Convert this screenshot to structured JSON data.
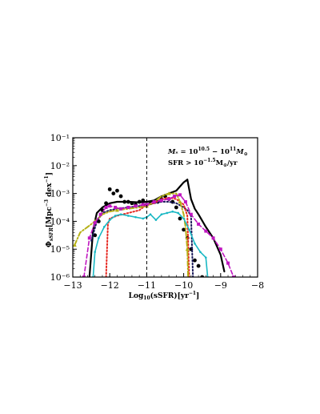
{
  "chart_data": {
    "type": "line",
    "xlabel": "Log₁₀(sSFR)[yr⁻¹]",
    "ylabel": "Φ_sSFR[Mpc⁻³ dex⁻¹]",
    "annotation_lines": [
      "M* = 10^10.5 − 10^11 M⊙",
      "SFR > 10^−1.5 M⊙/yr"
    ],
    "xlim": [
      -13,
      -8
    ],
    "ylim_log10": [
      -6,
      -1
    ],
    "x_ticks": [
      -13,
      -12,
      -11,
      -10,
      -9,
      -8
    ],
    "x_tick_labels": [
      "−13",
      "−12",
      "−11",
      "−10",
      "−9",
      "−8"
    ],
    "y_ticks_log10": [
      -6,
      -5,
      -4,
      -3,
      -2,
      -1
    ],
    "y_tick_labels": [
      "10⁻⁶",
      "10⁻⁵",
      "10⁻⁴",
      "10⁻³",
      "10⁻²",
      "10⁻¹"
    ],
    "vline_x": -11,
    "grid": false,
    "series": [
      {
        "color": "#000000",
        "style": "solid",
        "width": 2.2,
        "x": [
          -12.55,
          -12.45,
          -12.35,
          -12.2,
          -12.0,
          -11.8,
          -11.5,
          -11.2,
          -11.0,
          -10.8,
          -10.6,
          -10.4,
          -10.2,
          -10.1,
          -10.0,
          -9.9,
          -9.8,
          -9.7,
          -9.6,
          -9.4,
          -9.2,
          -9.0,
          -8.9
        ],
        "y_log10": [
          -6.0,
          -4.3,
          -3.7,
          -3.5,
          -3.35,
          -3.3,
          -3.3,
          -3.32,
          -3.3,
          -3.25,
          -3.1,
          -3.0,
          -2.9,
          -2.75,
          -2.6,
          -2.5,
          -3.2,
          -3.55,
          -3.75,
          -4.2,
          -4.6,
          -5.2,
          -5.8
        ]
      },
      {
        "color": "#000000",
        "style": "dots",
        "width": 0,
        "x": [
          -12.4,
          -12.3,
          -12.2,
          -12.1,
          -12.0,
          -11.9,
          -11.8,
          -11.7,
          -11.6,
          -11.5,
          -11.4,
          -11.3,
          -11.2,
          -11.1,
          -11.0,
          -10.9,
          -10.8,
          -10.7,
          -10.6,
          -10.5,
          -10.4,
          -10.3,
          -10.2,
          -10.1,
          -10.0,
          -9.9,
          -9.8,
          -9.7,
          -9.6,
          -9.5
        ],
        "y_log10": [
          -4.5,
          -4.0,
          -3.6,
          -3.35,
          -2.85,
          -3.0,
          -2.9,
          -3.1,
          -3.3,
          -3.3,
          -3.35,
          -3.4,
          -3.3,
          -3.25,
          -3.4,
          -3.35,
          -3.3,
          -3.3,
          -3.2,
          -3.1,
          -3.2,
          -3.3,
          -3.5,
          -3.9,
          -4.3,
          -4.6,
          -5.0,
          -5.4,
          -5.6,
          -6.0
        ]
      },
      {
        "color": "#1a1a5a",
        "style": "dotted",
        "width": 2,
        "x": [
          -12.5,
          -12.35,
          -12.2,
          -12.0,
          -11.8,
          -11.5,
          -11.2,
          -11.0,
          -10.8,
          -10.6,
          -10.4,
          -10.2,
          -10.0,
          -9.9,
          -9.8,
          -9.75
        ],
        "y_log10": [
          -4.7,
          -4.0,
          -3.7,
          -3.6,
          -3.55,
          -3.5,
          -3.45,
          -3.4,
          -3.35,
          -3.3,
          -3.3,
          -3.35,
          -3.5,
          -3.6,
          -3.8,
          -6.0
        ]
      },
      {
        "color": "#e6261f",
        "style": "dotted",
        "width": 2,
        "x": [
          -12.1,
          -12.05,
          -12.0,
          -11.8,
          -11.5,
          -11.2,
          -11.0,
          -10.8,
          -10.6,
          -10.4,
          -10.2,
          -10.0,
          -9.9,
          -9.85
        ],
        "y_log10": [
          -6.0,
          -4.1,
          -3.9,
          -3.8,
          -3.7,
          -3.6,
          -3.4,
          -3.35,
          -3.2,
          -3.15,
          -3.2,
          -3.4,
          -3.8,
          -6.0
        ]
      },
      {
        "color": "#b5b015",
        "style": "dashdot",
        "width": 2,
        "x": [
          -12.95,
          -12.8,
          -12.6,
          -12.4,
          -12.2,
          -12.0,
          -11.8,
          -11.5,
          -11.2,
          -11.0,
          -10.8,
          -10.6,
          -10.4,
          -10.3,
          -10.2,
          -10.1,
          -10.0,
          -9.95,
          -9.9,
          -9.88
        ],
        "y_log10": [
          -4.85,
          -4.4,
          -4.2,
          -4.0,
          -3.75,
          -3.65,
          -3.6,
          -3.55,
          -3.5,
          -3.45,
          -3.3,
          -3.1,
          -3.0,
          -3.0,
          -3.0,
          -3.3,
          -3.75,
          -4.2,
          -5.0,
          -6.0
        ]
      },
      {
        "color": "#c016c0",
        "style": "dashed",
        "width": 1.6,
        "x": [
          -12.7,
          -12.55,
          -12.4,
          -12.25,
          -12.1,
          -12.0,
          -11.85,
          -11.7,
          -11.5,
          -11.3,
          -11.1,
          -11.0,
          -10.8,
          -10.6,
          -10.4,
          -10.25,
          -10.1,
          -9.95,
          -9.8,
          -9.6,
          -9.4,
          -9.2,
          -9.0,
          -8.8,
          -8.65
        ],
        "y_log10": [
          -6.0,
          -4.6,
          -4.05,
          -3.75,
          -3.5,
          -3.45,
          -3.5,
          -3.55,
          -3.5,
          -3.45,
          -3.4,
          -3.4,
          -3.3,
          -3.25,
          -3.2,
          -3.1,
          -3.05,
          -3.3,
          -3.75,
          -4.1,
          -4.35,
          -4.6,
          -5.0,
          -5.5,
          -6.0
        ]
      },
      {
        "color": "#1ab8c4",
        "style": "solid",
        "width": 1.6,
        "x": [
          -12.45,
          -12.4,
          -12.3,
          -12.15,
          -12.0,
          -11.85,
          -11.7,
          -11.5,
          -11.3,
          -11.1,
          -11.0,
          -10.9,
          -10.75,
          -10.6,
          -10.45,
          -10.3,
          -10.15,
          -10.0,
          -9.85,
          -9.7,
          -9.55,
          -9.4,
          -9.35
        ],
        "y_log10": [
          -6.0,
          -5.1,
          -4.6,
          -4.2,
          -3.95,
          -3.8,
          -3.75,
          -3.8,
          -3.85,
          -3.9,
          -3.85,
          -3.75,
          -3.95,
          -3.75,
          -3.7,
          -3.65,
          -3.7,
          -3.9,
          -4.3,
          -4.8,
          -5.1,
          -5.3,
          -6.0
        ]
      }
    ]
  }
}
